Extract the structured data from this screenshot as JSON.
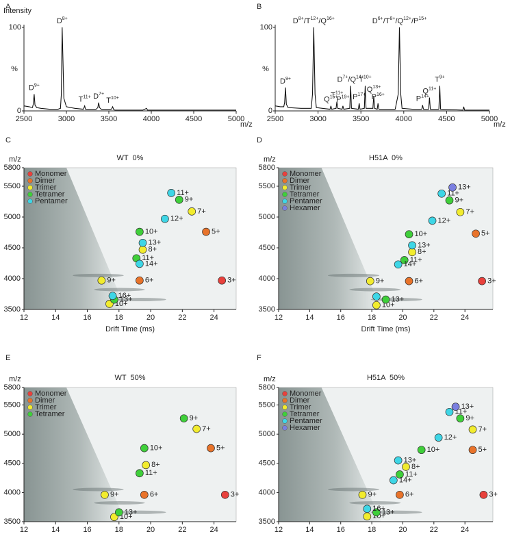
{
  "chart_data": [
    {
      "type": "line",
      "panel": "A",
      "ylabel_top": "Intensity",
      "ylabel": "%",
      "xlabel": "m/z",
      "xlim": [
        2500,
        5000
      ],
      "xticks": [
        2500,
        3000,
        3500,
        4000,
        4500,
        5000
      ],
      "ylim": [
        0,
        100
      ],
      "yticks": [
        0,
        100
      ],
      "color": "#111111",
      "x": [
        2500,
        2560,
        2600,
        2610,
        2620,
        2630,
        2650,
        2700,
        2800,
        2900,
        2930,
        2940,
        2950,
        2960,
        2970,
        3000,
        3100,
        3200,
        3215,
        3225,
        3240,
        3350,
        3370,
        3380,
        3390,
        3410,
        3530,
        3545,
        3555,
        3570,
        3900,
        3945,
        3955,
        3970,
        4500,
        5000
      ],
      "values": [
        6,
        5,
        4,
        8,
        20,
        7,
        4,
        3,
        2,
        2,
        3,
        20,
        100,
        60,
        15,
        5,
        3,
        2,
        6,
        2,
        2,
        2,
        4,
        10,
        4,
        2,
        2,
        5,
        2,
        1,
        1,
        3,
        1,
        1,
        1,
        1
      ],
      "annotations": [
        {
          "text": "D9+",
          "x": 2620,
          "y": 20
        },
        {
          "text": "D8+",
          "x": 2950,
          "y": 100
        },
        {
          "text": "T11+",
          "x": 3215,
          "y": 6
        },
        {
          "text": "D7+",
          "x": 3380,
          "y": 10
        },
        {
          "text": "T10+",
          "x": 3545,
          "y": 5
        }
      ]
    },
    {
      "type": "line",
      "panel": "B",
      "ylabel": "%",
      "xlabel": "m/z",
      "xlim": [
        2500,
        5000
      ],
      "xticks": [
        2500,
        3000,
        3500,
        4000,
        4500,
        5000
      ],
      "ylim": [
        0,
        100
      ],
      "yticks": [
        0,
        100
      ],
      "color": "#111111",
      "x": [
        2500,
        2560,
        2600,
        2610,
        2620,
        2630,
        2650,
        2800,
        2920,
        2935,
        2950,
        2965,
        2980,
        3050,
        3140,
        3150,
        3160,
        3210,
        3220,
        3230,
        3280,
        3290,
        3300,
        3370,
        3380,
        3390,
        3470,
        3480,
        3490,
        3540,
        3550,
        3560,
        3640,
        3650,
        3660,
        3690,
        3700,
        3710,
        3900,
        3935,
        3950,
        3965,
        3980,
        4100,
        4210,
        4220,
        4230,
        4290,
        4300,
        4310,
        4410,
        4420,
        4430,
        4690,
        4700,
        4710,
        5000
      ],
      "values": [
        6,
        5,
        5,
        10,
        28,
        8,
        4,
        3,
        3,
        20,
        100,
        20,
        4,
        3,
        2,
        6,
        2,
        3,
        11,
        3,
        2,
        6,
        2,
        3,
        30,
        3,
        2,
        9,
        2,
        3,
        30,
        3,
        3,
        18,
        3,
        2,
        9,
        2,
        2,
        20,
        100,
        20,
        3,
        2,
        2,
        7,
        2,
        2,
        16,
        2,
        2,
        30,
        2,
        1,
        5,
        1,
        1
      ],
      "annotations": [
        {
          "text": "D9+",
          "x": 2620,
          "y": 28
        },
        {
          "text": "D8+/T12+/Q16+",
          "x": 2950,
          "y": 100
        },
        {
          "text": "Q15+",
          "x": 3150,
          "y": 6
        },
        {
          "text": "T11+",
          "x": 3220,
          "y": 11
        },
        {
          "text": "P19+",
          "x": 3290,
          "y": 6
        },
        {
          "text": "D7+/Q14+",
          "x": 3380,
          "y": 30
        },
        {
          "text": "P17+",
          "x": 3480,
          "y": 9
        },
        {
          "text": "T10+",
          "x": 3550,
          "y": 30
        },
        {
          "text": "Q13+",
          "x": 3650,
          "y": 18
        },
        {
          "text": "P16+",
          "x": 3700,
          "y": 9
        },
        {
          "text": "D6+/T8+/Q12+/P15+",
          "x": 3950,
          "y": 100
        },
        {
          "text": "P14+",
          "x": 4220,
          "y": 7
        },
        {
          "text": "Q11+",
          "x": 4300,
          "y": 16
        },
        {
          "text": "T9+",
          "x": 4420,
          "y": 30
        }
      ]
    },
    {
      "type": "scatter",
      "panel": "C",
      "title": "WT  0%",
      "ylabel": "m/z",
      "xlabel": "Drift Time (ms)",
      "xlim": [
        12,
        25.4
      ],
      "xticks": [
        12,
        14,
        16,
        18,
        20,
        22,
        24
      ],
      "ylim": [
        3500,
        5800
      ],
      "yticks": [
        3500,
        4000,
        4500,
        5000,
        5500,
        5800
      ],
      "series": [
        {
          "name": "Monomer",
          "color": "#e8413c",
          "x": [
            24.5
          ],
          "values": [
            3970
          ],
          "labels": [
            "3+"
          ]
        },
        {
          "name": "Dimer",
          "color": "#e8732a",
          "x": [
            23.5,
            19.3
          ],
          "values": [
            4760,
            3970
          ],
          "labels": [
            "5+",
            "6+"
          ]
        },
        {
          "name": "Trimer",
          "color": "#f2ec2e",
          "x": [
            22.6,
            19.5,
            16.9,
            17.4
          ],
          "values": [
            5090,
            4470,
            3970,
            3590
          ],
          "labels": [
            "7+",
            "8+",
            "9+",
            "10+"
          ]
        },
        {
          "name": "Tetramer",
          "color": "#3fcf3a",
          "x": [
            21.8,
            19.3,
            19.1,
            17.7
          ],
          "values": [
            5280,
            4760,
            4330,
            3660
          ],
          "labels": [
            "9+",
            "10+",
            "11+",
            "13+"
          ]
        },
        {
          "name": "Pentamer",
          "color": "#3ed6e6",
          "x": [
            21.3,
            20.9,
            19.5,
            19.3,
            17.6
          ],
          "values": [
            5390,
            4970,
            4580,
            4240,
            3720
          ],
          "labels": [
            "11+",
            "12+",
            "13+",
            "14+",
            "16+"
          ]
        }
      ]
    },
    {
      "type": "scatter",
      "panel": "D",
      "title": "H51A  0%",
      "ylabel": "m/z",
      "xlabel": "Drift Time (ms)",
      "xlim": [
        12,
        25.8
      ],
      "xticks": [
        12,
        14,
        16,
        18,
        20,
        22,
        24
      ],
      "ylim": [
        3500,
        5800
      ],
      "yticks": [
        3500,
        4000,
        4500,
        5000,
        5500,
        5800
      ],
      "series": [
        {
          "name": "Monomer",
          "color": "#e8413c",
          "x": [
            25.1
          ],
          "values": [
            3960
          ],
          "labels": [
            "3+"
          ]
        },
        {
          "name": "Dimer",
          "color": "#e8732a",
          "x": [
            24.7,
            20.4
          ],
          "values": [
            4730,
            3960
          ],
          "labels": [
            "5+",
            "6+"
          ]
        },
        {
          "name": "Trimer",
          "color": "#f2ec2e",
          "x": [
            23.7,
            20.6,
            17.9,
            18.3
          ],
          "values": [
            5080,
            4430,
            3960,
            3570
          ],
          "labels": [
            "7+",
            "8+",
            "9+",
            "10+"
          ]
        },
        {
          "name": "Tetramer",
          "color": "#3fcf3a",
          "x": [
            23.0,
            20.4,
            20.1,
            18.9
          ],
          "values": [
            5270,
            4720,
            4300,
            3660
          ],
          "labels": [
            "9+",
            "10+",
            "11+",
            "13+"
          ]
        },
        {
          "name": "Pentamer",
          "color": "#3ed6e6",
          "x": [
            22.5,
            21.9,
            20.6,
            19.7,
            18.3
          ],
          "values": [
            5380,
            4940,
            4540,
            4230,
            3710
          ],
          "labels": [
            "11+",
            "12+",
            "13+",
            "14+",
            null
          ]
        },
        {
          "name": "Hexamer",
          "color": "#7a7fe0",
          "x": [
            23.2
          ],
          "values": [
            5480
          ],
          "labels": [
            "13+"
          ]
        }
      ]
    },
    {
      "type": "scatter",
      "panel": "E",
      "title": "WT  50%",
      "ylabel": "m/z",
      "xlim": [
        12,
        25.4
      ],
      "xticks": [
        12,
        14,
        16,
        18,
        20,
        22,
        24
      ],
      "ylim": [
        3500,
        5800
      ],
      "yticks": [
        3500,
        4000,
        4500,
        5000,
        5500,
        5800
      ],
      "series": [
        {
          "name": "Monomer",
          "color": "#e8413c",
          "x": [
            24.7
          ],
          "values": [
            3960
          ],
          "labels": [
            "3+"
          ]
        },
        {
          "name": "Dimer",
          "color": "#e8732a",
          "x": [
            23.8,
            19.6
          ],
          "values": [
            4760,
            3960
          ],
          "labels": [
            "5+",
            "6+"
          ]
        },
        {
          "name": "Trimer",
          "color": "#f2ec2e",
          "x": [
            22.9,
            19.7,
            17.1,
            17.7
          ],
          "values": [
            5090,
            4470,
            3960,
            3580
          ],
          "labels": [
            "7+",
            "8+",
            "9+",
            "10+"
          ]
        },
        {
          "name": "Tetramer",
          "color": "#3fcf3a",
          "x": [
            22.1,
            19.6,
            19.3,
            18.0
          ],
          "values": [
            5270,
            4760,
            4330,
            3660
          ],
          "labels": [
            "9+",
            "10+",
            "11+",
            "13+"
          ]
        }
      ]
    },
    {
      "type": "scatter",
      "panel": "F",
      "title": "H51A  50%",
      "ylabel": "m/z",
      "xlim": [
        12,
        25.8
      ],
      "xticks": [
        12,
        14,
        16,
        18,
        20,
        22,
        24
      ],
      "ylim": [
        3500,
        5800
      ],
      "yticks": [
        3500,
        4000,
        4500,
        5000,
        5500,
        5800
      ],
      "series": [
        {
          "name": "Monomer",
          "color": "#e8413c",
          "x": [
            25.2
          ],
          "values": [
            3960
          ],
          "labels": [
            "3+"
          ]
        },
        {
          "name": "Dimer",
          "color": "#e8732a",
          "x": [
            24.5,
            19.8
          ],
          "values": [
            4730,
            3960
          ],
          "labels": [
            "5+",
            "6+"
          ]
        },
        {
          "name": "Trimer",
          "color": "#f2ec2e",
          "x": [
            24.5,
            20.2,
            17.4,
            17.7
          ],
          "values": [
            5080,
            4440,
            3960,
            3590
          ],
          "labels": [
            "7+",
            "8+",
            "9+",
            "10+"
          ]
        },
        {
          "name": "Tetramer",
          "color": "#3fcf3a",
          "x": [
            23.7,
            21.2,
            19.8,
            18.3
          ],
          "values": [
            5270,
            4730,
            4310,
            3660
          ],
          "labels": [
            "9+",
            "10+",
            "11+",
            "13+"
          ]
        },
        {
          "name": "Pentamer",
          "color": "#3ed6e6",
          "x": [
            23.0,
            22.3,
            19.7,
            19.4,
            17.7
          ],
          "values": [
            5380,
            4940,
            4550,
            4210,
            3720
          ],
          "labels": [
            "11+",
            "12+",
            "13+",
            "14+",
            "16+"
          ]
        },
        {
          "name": "Hexamer",
          "color": "#7a7fe0",
          "x": [
            23.4
          ],
          "values": [
            5470
          ],
          "labels": [
            "13+"
          ]
        }
      ]
    }
  ]
}
